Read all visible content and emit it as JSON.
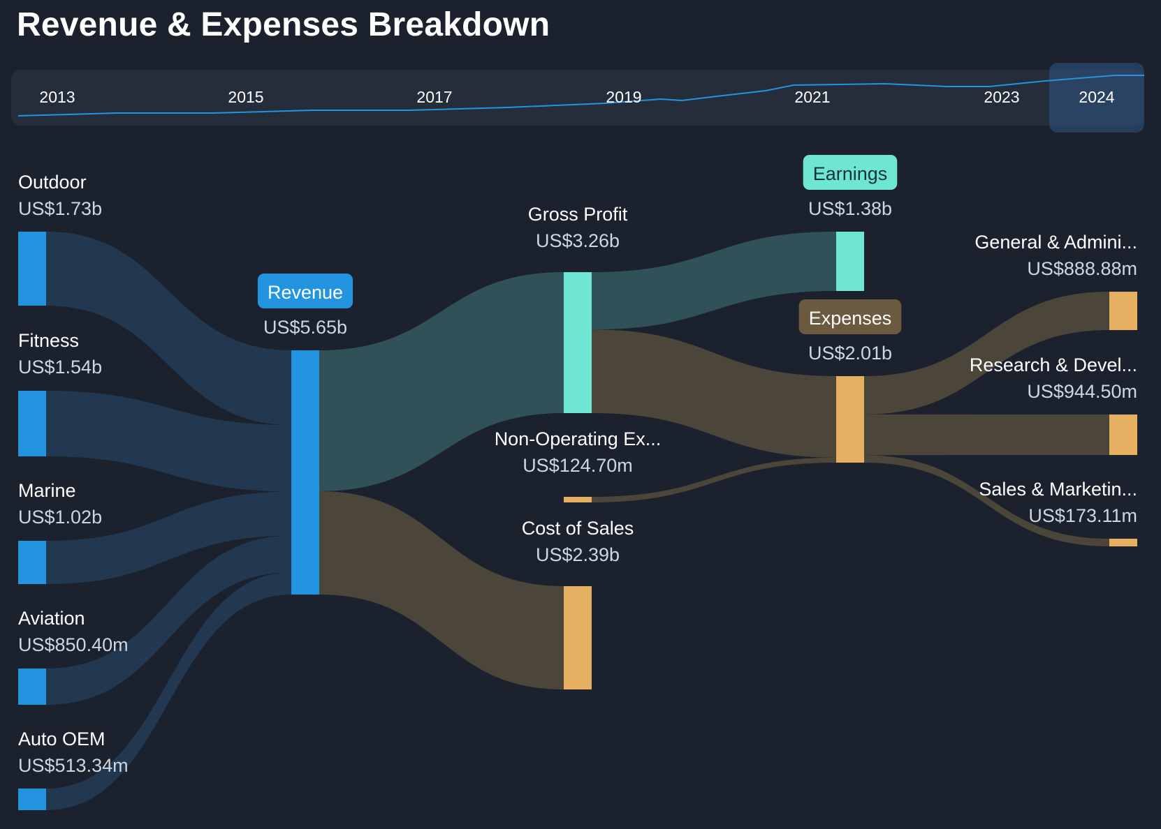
{
  "title": "Revenue & Expenses Breakdown",
  "timeline": {
    "years": [
      "2013",
      "2015",
      "2017",
      "2019",
      "2021",
      "2023",
      "2024"
    ],
    "selected": "2024",
    "line_color": "#2394df"
  },
  "colors": {
    "revenue": "#2394df",
    "profit": "#6ee6d3",
    "expense": "#e6b062",
    "revenue_flow": "#213850",
    "profit_flow": "#2f5157",
    "expense_flow": "#4c4539",
    "expense_pill": "#6b5940"
  },
  "chart_data": {
    "type": "sankey",
    "title": "Revenue & Expenses Breakdown",
    "nodes": [
      {
        "id": "outdoor",
        "name": "Outdoor",
        "value": "US$1.73b",
        "amount": 1730
      },
      {
        "id": "fitness",
        "name": "Fitness",
        "value": "US$1.54b",
        "amount": 1540
      },
      {
        "id": "marine",
        "name": "Marine",
        "value": "US$1.02b",
        "amount": 1020
      },
      {
        "id": "aviation",
        "name": "Aviation",
        "value": "US$850.40m",
        "amount": 850.4
      },
      {
        "id": "auto_oem",
        "name": "Auto OEM",
        "value": "US$513.34m",
        "amount": 513.34
      },
      {
        "id": "revenue",
        "name": "Revenue",
        "value": "US$5.65b",
        "amount": 5650
      },
      {
        "id": "gross_profit",
        "name": "Gross Profit",
        "value": "US$3.26b",
        "amount": 3260
      },
      {
        "id": "cost_of_sales",
        "name": "Cost of Sales",
        "value": "US$2.39b",
        "amount": 2390
      },
      {
        "id": "non_operating",
        "name": "Non-Operating Ex...",
        "value": "US$124.70m",
        "amount": 124.7
      },
      {
        "id": "earnings",
        "name": "Earnings",
        "value": "US$1.38b",
        "amount": 1380
      },
      {
        "id": "expenses",
        "name": "Expenses",
        "value": "US$2.01b",
        "amount": 2010
      },
      {
        "id": "general_admin",
        "name": "General & Admini...",
        "value": "US$888.88m",
        "amount": 888.88
      },
      {
        "id": "research_dev",
        "name": "Research & Devel...",
        "value": "US$944.50m",
        "amount": 944.5
      },
      {
        "id": "sales_marketing",
        "name": "Sales & Marketin...",
        "value": "US$173.11m",
        "amount": 173.11
      }
    ],
    "links": [
      {
        "source": "outdoor",
        "target": "revenue",
        "value": 1730
      },
      {
        "source": "fitness",
        "target": "revenue",
        "value": 1540
      },
      {
        "source": "marine",
        "target": "revenue",
        "value": 1020
      },
      {
        "source": "aviation",
        "target": "revenue",
        "value": 850.4
      },
      {
        "source": "auto_oem",
        "target": "revenue",
        "value": 513.34
      },
      {
        "source": "revenue",
        "target": "gross_profit",
        "value": 3260
      },
      {
        "source": "revenue",
        "target": "cost_of_sales",
        "value": 2390
      },
      {
        "source": "gross_profit",
        "target": "earnings",
        "value": 1380
      },
      {
        "source": "gross_profit",
        "target": "expenses",
        "value": 2010
      },
      {
        "source": "non_operating",
        "target": "expenses",
        "value": 124.7
      },
      {
        "source": "expenses",
        "target": "general_admin",
        "value": 888.88
      },
      {
        "source": "expenses",
        "target": "research_dev",
        "value": 944.5
      },
      {
        "source": "expenses",
        "target": "sales_marketing",
        "value": 173.11
      }
    ]
  }
}
